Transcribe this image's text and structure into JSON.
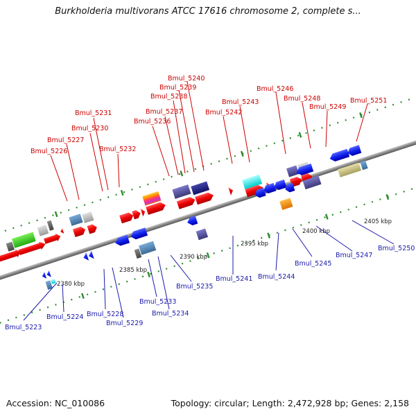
{
  "header": {
    "title": "Burkholderia multivorans ATCC 17616 chromosome 2, complete s..."
  },
  "footer": {
    "accession": "Accession: NC_010086",
    "stats": "Topology: circular; Length: 2,472,928 bp; Genes: 2,158"
  },
  "colors": {
    "forward_label": "#cc0000",
    "reverse_label": "#1a1aaa",
    "backbone": "#888888",
    "tick_dots": "#2e8b2e"
  },
  "axis": {
    "ticks": [
      "2380 kbp",
      "2385 kbp",
      "2390 kbp",
      "2395 kbp",
      "2400 kbp",
      "2405 kbp"
    ]
  },
  "genes_forward": [
    "Bmul_5226",
    "Bmul_5227",
    "Bmul_5230",
    "Bmul_5231",
    "Bmul_5232",
    "Bmul_5236",
    "Bmul_5237",
    "Bmul_5238",
    "Bmul_5239",
    "Bmul_5240",
    "Bmul_5242",
    "Bmul_5243",
    "Bmul_5246",
    "Bmul_5248",
    "Bmul_5249",
    "Bmul_5251"
  ],
  "genes_reverse": [
    "Bmul_5223",
    "Bmul_5224",
    "Bmul_5228",
    "Bmul_5229",
    "Bmul_5233",
    "Bmul_5234",
    "Bmul_5235",
    "Bmul_5241",
    "Bmul_5244",
    "Bmul_5245",
    "Bmul_5247",
    "Bmul_5250"
  ]
}
